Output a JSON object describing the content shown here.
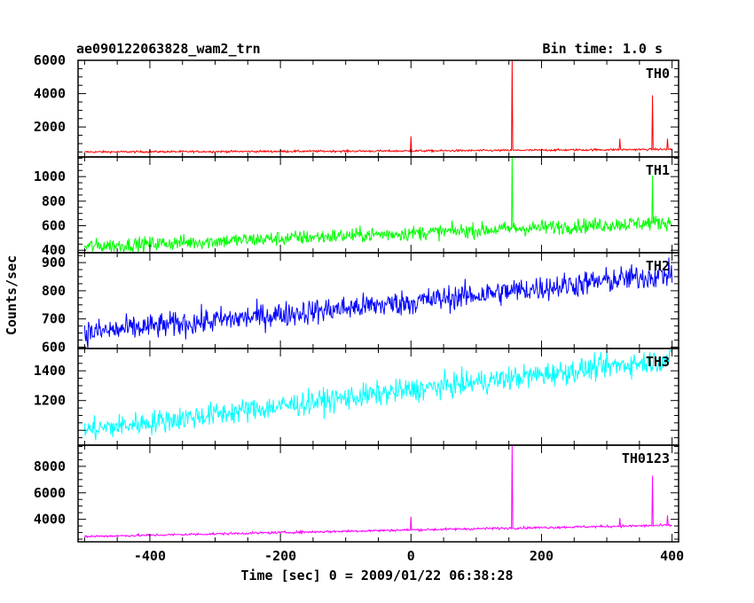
{
  "chart_data": {
    "type": "line",
    "title_left": "ae090122063828_wam2_trn",
    "title_right": "Bin time: 1.0 s",
    "xlabel": "Time [sec] 0 = 2009/01/22 06:38:28",
    "ylabel": "Counts/sec",
    "xlim": [
      -510,
      410
    ],
    "x_ticks": [
      -400,
      -200,
      0,
      200,
      400
    ],
    "bin_time_s": 1.0,
    "panels": [
      {
        "name": "TH0",
        "color": "#ff0000",
        "ylim": [
          200,
          6000
        ],
        "y_ticks": [
          2000,
          4000,
          6000
        ],
        "trend": [
          [
            -500,
            500
          ],
          [
            0,
            560
          ],
          [
            400,
            660
          ]
        ],
        "noise": 60,
        "spikes": [
          [
            0,
            1450
          ],
          [
            155,
            6000
          ],
          [
            320,
            1300
          ],
          [
            370,
            3900
          ],
          [
            393,
            1300
          ]
        ]
      },
      {
        "name": "TH1",
        "color": "#00ff00",
        "ylim": [
          380,
          1160
        ],
        "y_ticks": [
          400,
          600,
          800,
          1000
        ],
        "trend": [
          [
            -500,
            430
          ],
          [
            0,
            540
          ],
          [
            400,
            630
          ]
        ],
        "noise": 60,
        "spikes": [
          [
            155,
            1160
          ],
          [
            370,
            1010
          ]
        ]
      },
      {
        "name": "TH2",
        "color": "#0000ff",
        "ylim": [
          595,
          935
        ],
        "y_ticks": [
          600,
          700,
          800,
          900
        ],
        "trend": [
          [
            -500,
            650
          ],
          [
            0,
            760
          ],
          [
            400,
            860
          ]
        ],
        "noise": 45,
        "spikes": []
      },
      {
        "name": "TH3",
        "color": "#00ffff",
        "ylim": [
          900,
          1550
        ],
        "y_ticks": [
          1200,
          1400
        ],
        "trend": [
          [
            -500,
            1000
          ],
          [
            0,
            1270
          ],
          [
            400,
            1480
          ]
        ],
        "noise": 80,
        "spikes": []
      },
      {
        "name": "TH0123",
        "color": "#ff00ff",
        "ylim": [
          2300,
          9600
        ],
        "y_ticks": [
          4000,
          6000,
          8000
        ],
        "trend": [
          [
            -500,
            2700
          ],
          [
            0,
            3200
          ],
          [
            400,
            3550
          ]
        ],
        "noise": 90,
        "spikes": [
          [
            0,
            4200
          ],
          [
            155,
            9600
          ],
          [
            320,
            4100
          ],
          [
            370,
            7300
          ],
          [
            393,
            4300
          ]
        ]
      }
    ]
  }
}
